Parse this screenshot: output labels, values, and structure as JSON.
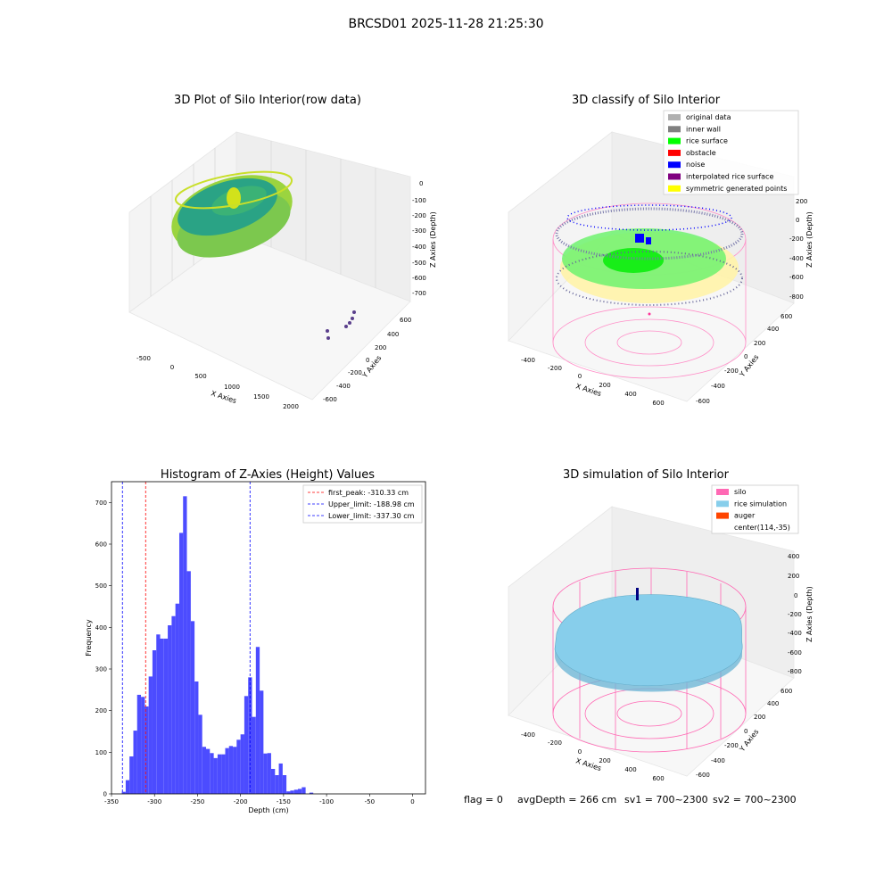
{
  "figure": {
    "suptitle": "BRCSD01 2025-11-28 21:25:30",
    "status": {
      "flag": "flag = 0",
      "avg_depth": "avgDepth = 266 cm",
      "sv1": "sv1 = 700~2300",
      "sv2": "sv2 = 700~2300"
    }
  },
  "panels": {
    "raw": {
      "title": "3D Plot of Silo Interior(row data)",
      "xlabel": "X Axies",
      "ylabel": "Y Axies",
      "zlabel": "Z Axies (Depth)",
      "xticks": [
        "-500",
        "0",
        "500",
        "1000",
        "1500",
        "2000"
      ],
      "yticks": [
        "600",
        "400",
        "200",
        "0",
        "-200",
        "-400",
        "-600"
      ],
      "zticks": [
        "0",
        "-100",
        "-200",
        "-300",
        "-400",
        "-500",
        "-600",
        "-700"
      ]
    },
    "classify": {
      "title": "3D classify of Silo Interior",
      "xlabel": "X Axies",
      "ylabel": "Y Axies",
      "zlabel": "Z Axies (Depth)",
      "xticks": [
        "-400",
        "-200",
        "0",
        "200",
        "400",
        "600"
      ],
      "yticks": [
        "600",
        "400",
        "200",
        "0",
        "-200",
        "-400",
        "-600"
      ],
      "zticks": [
        "200",
        "0",
        "-200",
        "-400",
        "-600",
        "-800"
      ],
      "legend": [
        {
          "label": "original data",
          "color": "#b0b0b0"
        },
        {
          "label": "inner wall",
          "color": "#808080"
        },
        {
          "label": "rice surface",
          "color": "#00ff00"
        },
        {
          "label": "obstacle",
          "color": "#ff0000"
        },
        {
          "label": "noise",
          "color": "#0000ff"
        },
        {
          "label": "interpolated rice surface",
          "color": "#800080"
        },
        {
          "label": "symmetric generated points",
          "color": "#ffff00"
        }
      ]
    },
    "simulation": {
      "title": "3D simulation of Silo Interior",
      "xlabel": "X Axies",
      "ylabel": "Y Axies",
      "zlabel": "Z Axies (Depth)",
      "xticks": [
        "-400",
        "-200",
        "0",
        "200",
        "400",
        "600"
      ],
      "yticks": [
        "600",
        "400",
        "200",
        "0",
        "-200",
        "-400",
        "-600"
      ],
      "zticks": [
        "400",
        "200",
        "0",
        "-200",
        "-400",
        "-600",
        "-800"
      ],
      "legend": [
        {
          "label": "silo",
          "color": "#ff69b4"
        },
        {
          "label": "rice simulation",
          "color": "#87ceeb"
        },
        {
          "label": "auger",
          "color": "#ff4500"
        },
        {
          "label": "center(114,-35)",
          "color": ""
        }
      ]
    }
  },
  "chart_data": {
    "type": "bar",
    "title": "Histogram of Z-Axies (Height) Values",
    "xlabel": "Depth (cm)",
    "ylabel": "Frequency",
    "xlim": [
      -350,
      15
    ],
    "ylim": [
      0,
      750
    ],
    "xticks": [
      -350,
      -300,
      -250,
      -200,
      -150,
      -100,
      -50,
      0
    ],
    "yticks": [
      0,
      100,
      200,
      300,
      400,
      500,
      600,
      700
    ],
    "bar_color": "#4c4cff",
    "bin_width": 4.45,
    "bins": [
      [
        -338.0,
        5
      ],
      [
        -333.5,
        33
      ],
      [
        -329.1,
        90
      ],
      [
        -324.6,
        152
      ],
      [
        -320.2,
        238
      ],
      [
        -315.7,
        233
      ],
      [
        -311.3,
        210
      ],
      [
        -306.8,
        282
      ],
      [
        -302.4,
        345
      ],
      [
        -297.9,
        383
      ],
      [
        -293.5,
        373
      ],
      [
        -289.0,
        373
      ],
      [
        -284.6,
        405
      ],
      [
        -280.1,
        427
      ],
      [
        -275.7,
        457
      ],
      [
        -271.2,
        627
      ],
      [
        -266.8,
        715
      ],
      [
        -262.3,
        535
      ],
      [
        -257.9,
        415
      ],
      [
        -253.4,
        270
      ],
      [
        -249.0,
        190
      ],
      [
        -244.5,
        113
      ],
      [
        -240.1,
        108
      ],
      [
        -235.6,
        98
      ],
      [
        -231.2,
        86
      ],
      [
        -226.7,
        95
      ],
      [
        -222.3,
        95
      ],
      [
        -217.8,
        110
      ],
      [
        -213.4,
        115
      ],
      [
        -208.9,
        113
      ],
      [
        -204.5,
        130
      ],
      [
        -200.0,
        143
      ],
      [
        -195.6,
        235
      ],
      [
        -191.1,
        280
      ],
      [
        -186.7,
        185
      ],
      [
        -182.2,
        353
      ],
      [
        -177.8,
        248
      ],
      [
        -173.3,
        97
      ],
      [
        -168.9,
        98
      ],
      [
        -164.4,
        60
      ],
      [
        -160.0,
        45
      ],
      [
        -155.5,
        73
      ],
      [
        -151.1,
        45
      ],
      [
        -146.6,
        6
      ],
      [
        -142.2,
        8
      ],
      [
        -137.7,
        10
      ],
      [
        -133.3,
        12
      ],
      [
        -128.8,
        16
      ],
      [
        -124.4,
        0
      ],
      [
        -119.9,
        3
      ]
    ],
    "vlines": [
      {
        "label": "first_peak: -310.33 cm",
        "x": -310.33,
        "color": "#ff0000"
      },
      {
        "label": "Upper_limit: -188.98 cm",
        "x": -188.98,
        "color": "#0000ff"
      },
      {
        "label": "Lower_limit: -337.30 cm",
        "x": -337.3,
        "color": "#0000ff"
      }
    ]
  }
}
